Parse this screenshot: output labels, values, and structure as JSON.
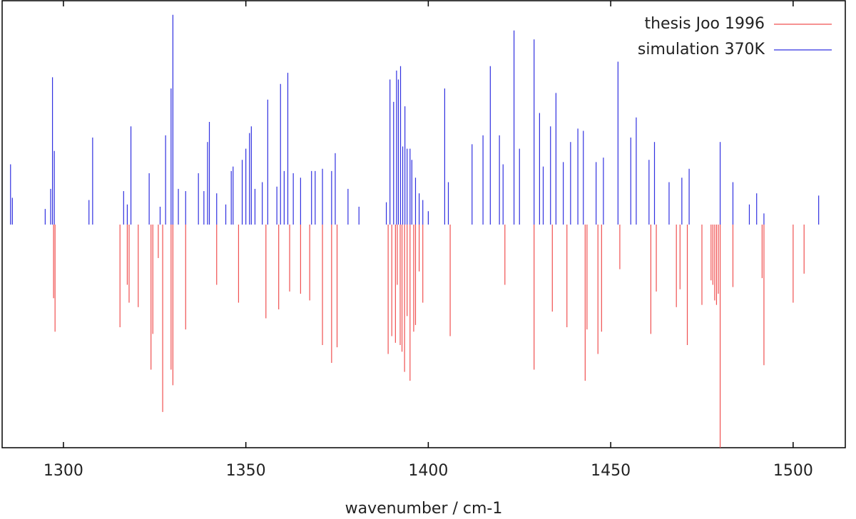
{
  "chart_data": {
    "type": "stick",
    "x_label": "wavenumber / cm-1",
    "xlim": [
      1283.2,
      1514.3
    ],
    "xticks": [
      1300,
      1350,
      1400,
      1450,
      1500
    ],
    "ylim": [
      -1,
      1
    ],
    "legend": "top-right",
    "series": [
      {
        "name": "thesis Joo 1996",
        "color": "#f05050",
        "x": [
          1297.3,
          1297.7,
          1315.5,
          1317.5,
          1318,
          1320.5,
          1324,
          1324.5,
          1326,
          1327.2,
          1329.5,
          1330,
          1333.5,
          1342,
          1348,
          1355.5,
          1359,
          1362,
          1365,
          1367.5,
          1371,
          1373.5,
          1375,
          1389,
          1390,
          1391,
          1391.5,
          1392.3,
          1392.8,
          1393.5,
          1394.2,
          1395,
          1396,
          1396.5,
          1397.5,
          1398.5,
          1406,
          1421,
          1429,
          1434,
          1438,
          1443,
          1443.5,
          1446.5,
          1447.5,
          1452.5,
          1461,
          1462.5,
          1468,
          1469,
          1471,
          1475,
          1477.5,
          1478,
          1478.5,
          1479,
          1479.5,
          1480,
          1483.5,
          1491.5,
          1492,
          1500,
          1503
        ],
        "values": [
          -0.33,
          -0.48,
          -0.46,
          -0.27,
          -0.35,
          -0.37,
          -0.65,
          -0.49,
          -0.15,
          -0.84,
          -0.65,
          -0.72,
          -0.47,
          -0.27,
          -0.35,
          -0.42,
          -0.38,
          -0.3,
          -0.31,
          -0.34,
          -0.54,
          -0.62,
          -0.55,
          -0.58,
          -0.5,
          -0.53,
          -0.27,
          -0.54,
          -0.57,
          -0.66,
          -0.41,
          -0.7,
          -0.48,
          -0.45,
          -0.21,
          -0.35,
          -0.5,
          -0.27,
          -0.65,
          -0.39,
          -0.46,
          -0.7,
          -0.47,
          -0.58,
          -0.48,
          -0.2,
          -0.49,
          -0.3,
          -0.37,
          -0.29,
          -0.54,
          -0.36,
          -0.25,
          -0.27,
          -0.34,
          -0.36,
          -0.31,
          -1.0,
          -0.28,
          -0.24,
          -0.63,
          -0.35,
          -0.22
        ]
      },
      {
        "name": "simulation 370K",
        "color": "#3030e0",
        "x": [
          1285.5,
          1286,
          1295,
          1296.5,
          1297,
          1297.5,
          1307,
          1308,
          1316.5,
          1317.5,
          1318.5,
          1323.5,
          1326.5,
          1328,
          1329.5,
          1330,
          1331.5,
          1333.5,
          1337,
          1338.5,
          1339.5,
          1340,
          1342,
          1344.5,
          1346,
          1346.5,
          1349,
          1350,
          1351,
          1351.5,
          1352.5,
          1354.5,
          1356,
          1358.5,
          1359.5,
          1360.5,
          1361.5,
          1363,
          1365,
          1368,
          1369,
          1371,
          1373.5,
          1374.5,
          1378,
          1381,
          1388.5,
          1389.5,
          1390.5,
          1391.3,
          1391.8,
          1392.4,
          1393,
          1393.6,
          1394.2,
          1395,
          1395.5,
          1396.5,
          1397.5,
          1398.5,
          1400,
          1404.5,
          1405.5,
          1412,
          1415,
          1417,
          1419.5,
          1420.5,
          1423.5,
          1425,
          1429,
          1430.5,
          1431.5,
          1433.5,
          1435,
          1437,
          1439,
          1441,
          1442.5,
          1446,
          1448,
          1452,
          1455.5,
          1457,
          1460.5,
          1462,
          1466,
          1469.5,
          1471.5,
          1480,
          1483.5,
          1488,
          1490,
          1492,
          1507
        ],
        "values": [
          0.27,
          0.12,
          0.07,
          0.16,
          0.66,
          0.33,
          0.11,
          0.39,
          0.15,
          0.09,
          0.44,
          0.23,
          0.08,
          0.4,
          0.61,
          0.94,
          0.16,
          0.15,
          0.23,
          0.15,
          0.37,
          0.46,
          0.14,
          0.09,
          0.24,
          0.26,
          0.29,
          0.34,
          0.41,
          0.44,
          0.16,
          0.19,
          0.56,
          0.17,
          0.63,
          0.24,
          0.68,
          0.23,
          0.21,
          0.24,
          0.24,
          0.25,
          0.24,
          0.32,
          0.16,
          0.08,
          0.1,
          0.65,
          0.55,
          0.69,
          0.65,
          0.71,
          0.35,
          0.53,
          0.34,
          0.34,
          0.29,
          0.21,
          0.14,
          0.11,
          0.06,
          0.61,
          0.19,
          0.36,
          0.4,
          0.71,
          0.4,
          0.27,
          0.87,
          0.34,
          0.83,
          0.5,
          0.26,
          0.44,
          0.59,
          0.28,
          0.37,
          0.43,
          0.42,
          0.28,
          0.3,
          0.73,
          0.39,
          0.48,
          0.29,
          0.37,
          0.19,
          0.21,
          0.25,
          0.37,
          0.19,
          0.09,
          0.14,
          0.05,
          0.13
        ]
      }
    ]
  }
}
